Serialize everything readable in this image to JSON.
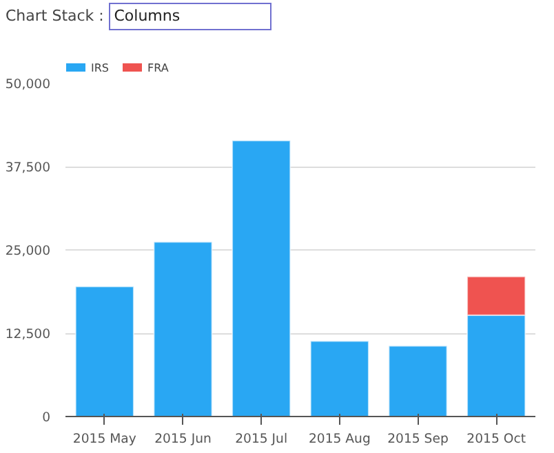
{
  "chart_data": {
    "type": "bar",
    "stacked": true,
    "annotations": [
      "Chart Stack :",
      "Columns"
    ],
    "categories": [
      "2015 May",
      "2015 Jun",
      "2015 Jul",
      "2015 Aug",
      "2015 Sep",
      "2015 Oct"
    ],
    "series": [
      {
        "name": "IRS",
        "color": "#29a7f3",
        "values": [
          19500,
          26200,
          41400,
          11300,
          10600,
          15200
        ]
      },
      {
        "name": "FRA",
        "color": "#ef5350",
        "values": [
          null,
          null,
          null,
          null,
          null,
          5800
        ]
      }
    ],
    "ylim": [
      0,
      50000
    ],
    "yticks": [
      0,
      {
        "value": 12500,
        "label": "12,500"
      },
      {
        "value": 25000,
        "label": "25,000"
      },
      {
        "value": 37500,
        "label": "37,500"
      },
      {
        "value": 50000,
        "label": "50,000"
      }
    ],
    "grid": "y",
    "legend": "top left"
  }
}
